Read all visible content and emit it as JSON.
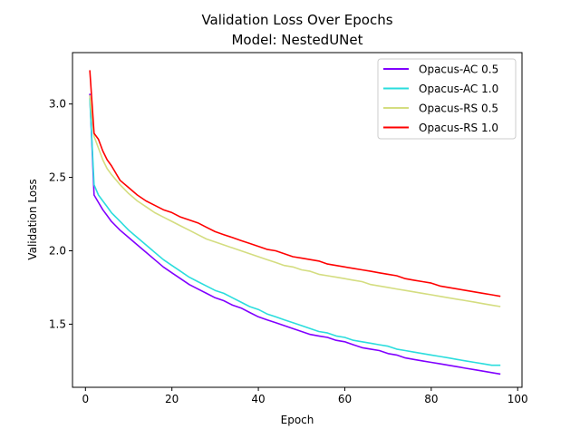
{
  "chart_data": {
    "type": "line",
    "title": "Validation Loss Over Epochs",
    "subtitle": "Model: NestedUNet",
    "xlabel": "Epoch",
    "ylabel": "Validation Loss",
    "xlim": [
      -3,
      101
    ],
    "ylim": [
      1.07,
      3.35
    ],
    "xticks": [
      0,
      20,
      40,
      60,
      80,
      100
    ],
    "yticks": [
      1.5,
      2.0,
      2.5,
      3.0
    ],
    "xtick_labels": [
      "0",
      "20",
      "40",
      "60",
      "80",
      "100"
    ],
    "ytick_labels": [
      "1.5",
      "2.0",
      "2.5",
      "3.0"
    ],
    "grid": false,
    "legend_position": "top-right",
    "series": [
      {
        "name": "Opacus-AC 0.5",
        "color": "#8000ff",
        "points": [
          [
            1,
            3.07
          ],
          [
            2,
            2.38
          ],
          [
            3,
            2.33
          ],
          [
            4,
            2.28
          ],
          [
            5,
            2.24
          ],
          [
            6,
            2.2
          ],
          [
            8,
            2.14
          ],
          [
            10,
            2.09
          ],
          [
            12,
            2.04
          ],
          [
            14,
            1.99
          ],
          [
            16,
            1.94
          ],
          [
            18,
            1.89
          ],
          [
            20,
            1.85
          ],
          [
            22,
            1.81
          ],
          [
            24,
            1.77
          ],
          [
            26,
            1.74
          ],
          [
            28,
            1.71
          ],
          [
            30,
            1.68
          ],
          [
            32,
            1.66
          ],
          [
            34,
            1.63
          ],
          [
            36,
            1.61
          ],
          [
            38,
            1.58
          ],
          [
            40,
            1.55
          ],
          [
            42,
            1.53
          ],
          [
            44,
            1.51
          ],
          [
            46,
            1.49
          ],
          [
            48,
            1.47
          ],
          [
            50,
            1.45
          ],
          [
            52,
            1.43
          ],
          [
            54,
            1.42
          ],
          [
            56,
            1.41
          ],
          [
            58,
            1.39
          ],
          [
            60,
            1.38
          ],
          [
            62,
            1.36
          ],
          [
            64,
            1.34
          ],
          [
            66,
            1.33
          ],
          [
            68,
            1.32
          ],
          [
            70,
            1.3
          ],
          [
            72,
            1.29
          ],
          [
            74,
            1.27
          ],
          [
            76,
            1.26
          ],
          [
            78,
            1.25
          ],
          [
            80,
            1.24
          ],
          [
            82,
            1.23
          ],
          [
            84,
            1.22
          ],
          [
            86,
            1.21
          ],
          [
            88,
            1.2
          ],
          [
            90,
            1.19
          ],
          [
            92,
            1.18
          ],
          [
            94,
            1.17
          ],
          [
            96,
            1.16
          ]
        ]
      },
      {
        "name": "Opacus-AC 1.0",
        "color": "#2adddd",
        "points": [
          [
            1,
            3.04
          ],
          [
            2,
            2.45
          ],
          [
            3,
            2.38
          ],
          [
            4,
            2.34
          ],
          [
            5,
            2.3
          ],
          [
            6,
            2.26
          ],
          [
            8,
            2.2
          ],
          [
            10,
            2.14
          ],
          [
            12,
            2.09
          ],
          [
            14,
            2.04
          ],
          [
            16,
            1.99
          ],
          [
            18,
            1.94
          ],
          [
            20,
            1.9
          ],
          [
            22,
            1.86
          ],
          [
            24,
            1.82
          ],
          [
            26,
            1.79
          ],
          [
            28,
            1.76
          ],
          [
            30,
            1.73
          ],
          [
            32,
            1.71
          ],
          [
            34,
            1.68
          ],
          [
            36,
            1.65
          ],
          [
            38,
            1.62
          ],
          [
            40,
            1.6
          ],
          [
            42,
            1.57
          ],
          [
            44,
            1.55
          ],
          [
            46,
            1.53
          ],
          [
            48,
            1.51
          ],
          [
            50,
            1.49
          ],
          [
            52,
            1.47
          ],
          [
            54,
            1.45
          ],
          [
            56,
            1.44
          ],
          [
            58,
            1.42
          ],
          [
            60,
            1.41
          ],
          [
            62,
            1.39
          ],
          [
            64,
            1.38
          ],
          [
            66,
            1.37
          ],
          [
            68,
            1.36
          ],
          [
            70,
            1.35
          ],
          [
            72,
            1.33
          ],
          [
            74,
            1.32
          ],
          [
            76,
            1.31
          ],
          [
            78,
            1.3
          ],
          [
            80,
            1.29
          ],
          [
            82,
            1.28
          ],
          [
            84,
            1.27
          ],
          [
            86,
            1.26
          ],
          [
            88,
            1.25
          ],
          [
            90,
            1.24
          ],
          [
            92,
            1.23
          ],
          [
            94,
            1.22
          ],
          [
            96,
            1.22
          ]
        ]
      },
      {
        "name": "Opacus-RS 0.5",
        "color": "#d4dd80",
        "points": [
          [
            1,
            3.06
          ],
          [
            2,
            2.78
          ],
          [
            3,
            2.7
          ],
          [
            4,
            2.62
          ],
          [
            5,
            2.56
          ],
          [
            6,
            2.52
          ],
          [
            8,
            2.45
          ],
          [
            10,
            2.39
          ],
          [
            12,
            2.34
          ],
          [
            14,
            2.3
          ],
          [
            16,
            2.26
          ],
          [
            18,
            2.23
          ],
          [
            20,
            2.2
          ],
          [
            22,
            2.17
          ],
          [
            24,
            2.14
          ],
          [
            26,
            2.11
          ],
          [
            28,
            2.08
          ],
          [
            30,
            2.06
          ],
          [
            32,
            2.04
          ],
          [
            34,
            2.02
          ],
          [
            36,
            2.0
          ],
          [
            38,
            1.98
          ],
          [
            40,
            1.96
          ],
          [
            42,
            1.94
          ],
          [
            44,
            1.92
          ],
          [
            46,
            1.9
          ],
          [
            48,
            1.89
          ],
          [
            50,
            1.87
          ],
          [
            52,
            1.86
          ],
          [
            54,
            1.84
          ],
          [
            56,
            1.83
          ],
          [
            58,
            1.82
          ],
          [
            60,
            1.81
          ],
          [
            62,
            1.8
          ],
          [
            64,
            1.79
          ],
          [
            66,
            1.77
          ],
          [
            68,
            1.76
          ],
          [
            70,
            1.75
          ],
          [
            72,
            1.74
          ],
          [
            74,
            1.73
          ],
          [
            76,
            1.72
          ],
          [
            78,
            1.71
          ],
          [
            80,
            1.7
          ],
          [
            82,
            1.69
          ],
          [
            84,
            1.68
          ],
          [
            86,
            1.67
          ],
          [
            88,
            1.66
          ],
          [
            90,
            1.65
          ],
          [
            92,
            1.64
          ],
          [
            94,
            1.63
          ],
          [
            96,
            1.62
          ]
        ]
      },
      {
        "name": "Opacus-RS 1.0",
        "color": "#ff0000",
        "points": [
          [
            1,
            3.23
          ],
          [
            2,
            2.8
          ],
          [
            3,
            2.76
          ],
          [
            4,
            2.68
          ],
          [
            5,
            2.62
          ],
          [
            6,
            2.58
          ],
          [
            8,
            2.48
          ],
          [
            10,
            2.43
          ],
          [
            12,
            2.38
          ],
          [
            14,
            2.34
          ],
          [
            16,
            2.31
          ],
          [
            18,
            2.28
          ],
          [
            20,
            2.26
          ],
          [
            22,
            2.23
          ],
          [
            24,
            2.21
          ],
          [
            26,
            2.19
          ],
          [
            28,
            2.16
          ],
          [
            30,
            2.13
          ],
          [
            32,
            2.11
          ],
          [
            34,
            2.09
          ],
          [
            36,
            2.07
          ],
          [
            38,
            2.05
          ],
          [
            40,
            2.03
          ],
          [
            42,
            2.01
          ],
          [
            44,
            2.0
          ],
          [
            46,
            1.98
          ],
          [
            48,
            1.96
          ],
          [
            50,
            1.95
          ],
          [
            52,
            1.94
          ],
          [
            54,
            1.93
          ],
          [
            56,
            1.91
          ],
          [
            58,
            1.9
          ],
          [
            60,
            1.89
          ],
          [
            62,
            1.88
          ],
          [
            64,
            1.87
          ],
          [
            66,
            1.86
          ],
          [
            68,
            1.85
          ],
          [
            70,
            1.84
          ],
          [
            72,
            1.83
          ],
          [
            74,
            1.81
          ],
          [
            76,
            1.8
          ],
          [
            78,
            1.79
          ],
          [
            80,
            1.78
          ],
          [
            82,
            1.76
          ],
          [
            84,
            1.75
          ],
          [
            86,
            1.74
          ],
          [
            88,
            1.73
          ],
          [
            90,
            1.72
          ],
          [
            92,
            1.71
          ],
          [
            94,
            1.7
          ],
          [
            96,
            1.69
          ]
        ]
      }
    ]
  }
}
